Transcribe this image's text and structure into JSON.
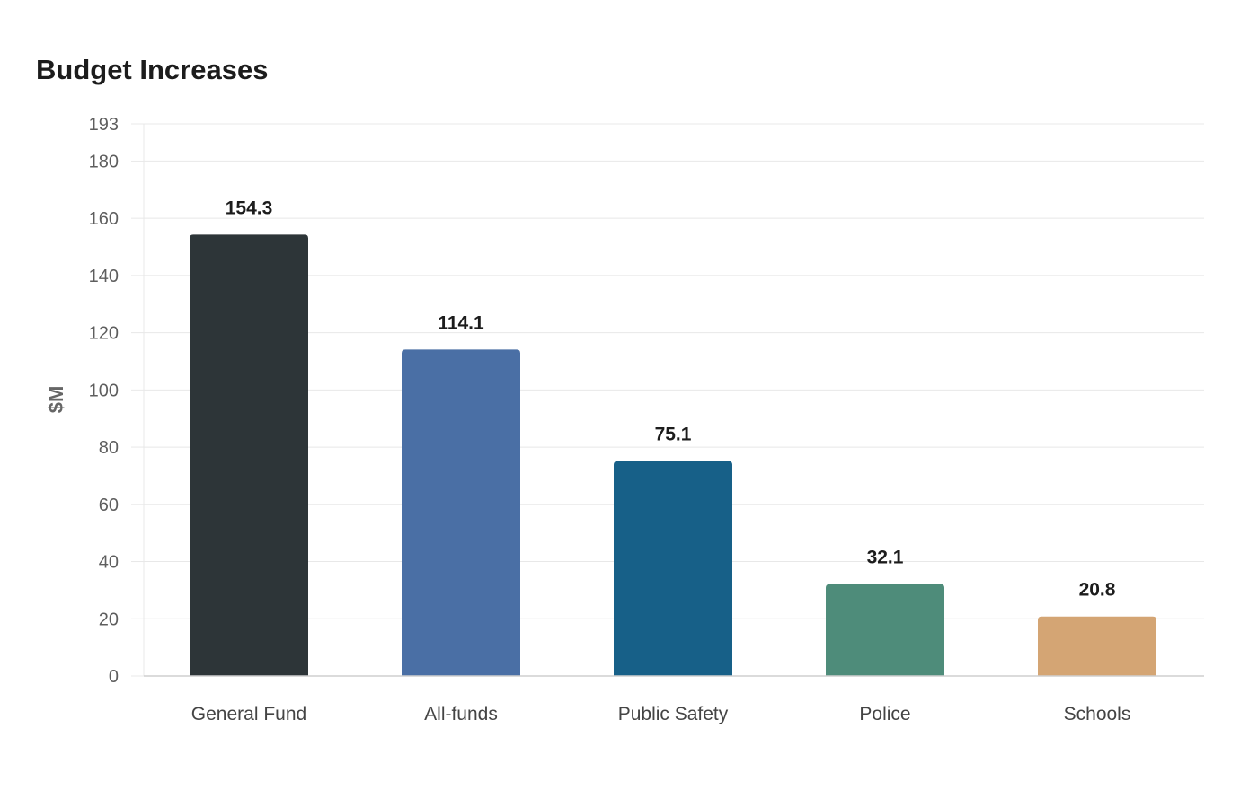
{
  "chart_data": {
    "type": "bar",
    "title": "Budget Increases",
    "xlabel": "",
    "ylabel": "$M",
    "categories": [
      "General Fund",
      "All-funds",
      "Public Safety",
      "Police",
      "Schools"
    ],
    "values": [
      154.3,
      114.1,
      75.1,
      32.1,
      20.8
    ],
    "colors": [
      "#2d3538",
      "#4a6fa5",
      "#176088",
      "#4e8c7a",
      "#d4a574"
    ],
    "ylim": [
      0,
      193
    ],
    "yticks": [
      0,
      20,
      40,
      60,
      80,
      100,
      120,
      140,
      160,
      180,
      193
    ],
    "grid": true,
    "legend": "none"
  }
}
